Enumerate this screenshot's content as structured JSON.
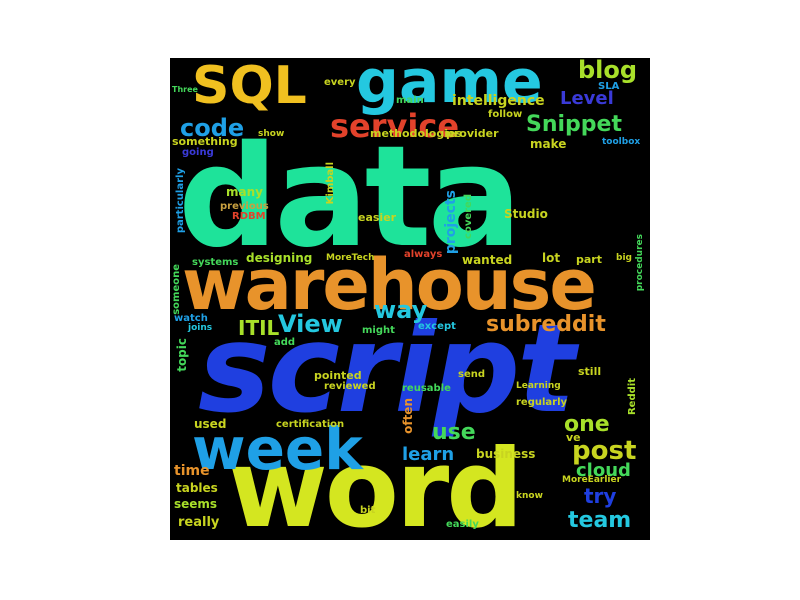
{
  "colors": {
    "teal": "#1ee39a",
    "blue": "#1f3fe0",
    "sky": "#1fa0e6",
    "orange": "#e8932b",
    "yellow": "#e2e62a",
    "green": "#44d85a",
    "red": "#e2422b",
    "cyan": "#24c8e0",
    "lime": "#a8e02a",
    "gold": "#f0c020",
    "purple": "#3a3ad8",
    "tan": "#c8a040"
  },
  "words": {
    "data": "data",
    "script": "script",
    "word": "word",
    "warehouse": "warehouse",
    "week": "week",
    "game": "game",
    "sql": "SQL",
    "service": "service",
    "code": "code",
    "snippet": "Snippet",
    "blog": "blog",
    "level": "Level",
    "intelligence": "intelligence",
    "view": "View",
    "way": "way",
    "itil": "ITIL",
    "subreddit": "subreddit",
    "post": "post",
    "try": "try",
    "team": "team",
    "one": "one",
    "use": "use",
    "learn": "learn",
    "cloud": "cloud",
    "time": "time",
    "tables": "tables",
    "seems": "seems",
    "really": "really",
    "used": "used",
    "business": "business",
    "many": "many",
    "previous": "previous",
    "rdbm": "RDBM",
    "designing": "designing",
    "systems": "systems",
    "someone": "someone",
    "particularly": "particularly",
    "topic": "topic",
    "watch": "watch",
    "joins": "joins",
    "add": "add",
    "might": "might",
    "except": "except",
    "pointed": "pointed",
    "reviewed": "reviewed",
    "certification": "certification",
    "often": "often",
    "send": "send",
    "reusable": "reusable",
    "still": "still",
    "regularly": "regularly",
    "ve": "ve",
    "reddit": "Reddit",
    "lot": "lot",
    "part": "part",
    "wanted": "wanted",
    "always": "always",
    "projects": "projects",
    "easier": "easier",
    "covered": "covered",
    "studio": "Studio",
    "make": "make",
    "methodologies": "methodologies",
    "provider": "provider",
    "follow": "follow",
    "main": "main",
    "sla": "SLA",
    "every": "every",
    "something": "something",
    "going": "going",
    "show": "show",
    "toolbox": "toolbox",
    "moretech": "MoreTech",
    "moreearlier": "MoreEarlier",
    "big": "big",
    "procedures": "procedures",
    "learning": "Learning",
    "know": "know",
    "easily": "easily",
    "bit": "bit",
    "kimball": "Kimball",
    "three": "Three"
  }
}
